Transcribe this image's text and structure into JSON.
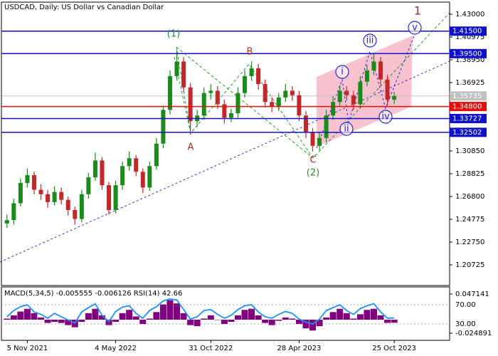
{
  "chart_data": [
    {
      "type": "candlestick",
      "title": "USDCAD, Daily:  US Dollar vs Canadian Dollar",
      "categories": [
        null,
        null,
        null,
        "5 Nov 2021",
        null,
        null,
        null,
        null,
        null,
        null,
        null,
        null,
        null,
        null,
        null,
        null,
        "4 May 2022",
        null,
        null,
        null,
        null,
        null,
        null,
        null,
        null,
        null,
        null,
        null,
        null,
        null,
        "31 Oct 2022",
        null,
        null,
        null,
        null,
        null,
        null,
        null,
        null,
        null,
        null,
        null,
        null,
        "28 Apr 2023",
        null,
        null,
        null,
        null,
        null,
        null,
        null,
        null,
        null,
        null,
        null,
        null,
        null,
        "25 Oct 2023"
      ],
      "ohlc": [
        [
          1.244,
          1.252,
          1.24,
          1.247
        ],
        [
          1.247,
          1.266,
          1.243,
          1.262
        ],
        [
          1.262,
          1.284,
          1.259,
          1.28
        ],
        [
          1.28,
          1.293,
          1.276,
          1.287
        ],
        [
          1.287,
          1.29,
          1.27,
          1.274
        ],
        [
          1.274,
          1.279,
          1.265,
          1.27
        ],
        [
          1.27,
          1.274,
          1.258,
          1.263
        ],
        [
          1.263,
          1.277,
          1.26,
          1.272
        ],
        [
          1.272,
          1.276,
          1.261,
          1.265
        ],
        [
          1.265,
          1.268,
          1.251,
          1.256
        ],
        [
          1.256,
          1.259,
          1.243,
          1.248
        ],
        [
          1.248,
          1.274,
          1.245,
          1.27
        ],
        [
          1.27,
          1.289,
          1.266,
          1.285
        ],
        [
          1.285,
          1.307,
          1.282,
          1.3
        ],
        [
          1.3,
          1.303,
          1.274,
          1.278
        ],
        [
          1.278,
          1.281,
          1.252,
          1.256
        ],
        [
          1.256,
          1.282,
          1.253,
          1.278
        ],
        [
          1.278,
          1.299,
          1.274,
          1.295
        ],
        [
          1.295,
          1.308,
          1.291,
          1.302
        ],
        [
          1.302,
          1.305,
          1.286,
          1.29
        ],
        [
          1.29,
          1.293,
          1.271,
          1.276
        ],
        [
          1.276,
          1.299,
          1.273,
          1.295
        ],
        [
          1.295,
          1.32,
          1.292,
          1.315
        ],
        [
          1.315,
          1.349,
          1.311,
          1.345
        ],
        [
          1.345,
          1.38,
          1.341,
          1.375
        ],
        [
          1.375,
          1.398,
          1.371,
          1.388
        ],
        [
          1.388,
          1.392,
          1.361,
          1.365
        ],
        [
          1.365,
          1.369,
          1.323,
          1.335
        ],
        [
          1.335,
          1.345,
          1.33,
          1.34
        ],
        [
          1.34,
          1.365,
          1.336,
          1.36
        ],
        [
          1.36,
          1.368,
          1.354,
          1.362
        ],
        [
          1.362,
          1.366,
          1.346,
          1.35
        ],
        [
          1.35,
          1.354,
          1.333,
          1.338
        ],
        [
          1.338,
          1.346,
          1.334,
          1.342
        ],
        [
          1.342,
          1.365,
          1.338,
          1.36
        ],
        [
          1.36,
          1.38,
          1.356,
          1.375
        ],
        [
          1.375,
          1.388,
          1.371,
          1.382
        ],
        [
          1.382,
          1.386,
          1.363,
          1.368
        ],
        [
          1.368,
          1.372,
          1.347,
          1.352
        ],
        [
          1.352,
          1.356,
          1.343,
          1.348
        ],
        [
          1.348,
          1.36,
          1.344,
          1.356
        ],
        [
          1.356,
          1.368,
          1.352,
          1.362
        ],
        [
          1.362,
          1.366,
          1.353,
          1.358
        ],
        [
          1.358,
          1.362,
          1.335,
          1.34
        ],
        [
          1.34,
          1.344,
          1.32,
          1.325
        ],
        [
          1.325,
          1.329,
          1.308,
          1.313
        ],
        [
          1.313,
          1.325,
          1.309,
          1.32
        ],
        [
          1.32,
          1.345,
          1.316,
          1.34
        ],
        [
          1.34,
          1.357,
          1.336,
          1.352
        ],
        [
          1.352,
          1.367,
          1.348,
          1.362
        ],
        [
          1.362,
          1.366,
          1.353,
          1.358
        ],
        [
          1.358,
          1.362,
          1.345,
          1.35
        ],
        [
          1.35,
          1.375,
          1.346,
          1.37
        ],
        [
          1.37,
          1.385,
          1.366,
          1.38
        ],
        [
          1.38,
          1.396,
          1.376,
          1.388
        ],
        [
          1.388,
          1.392,
          1.367,
          1.372
        ],
        [
          1.372,
          1.376,
          1.349,
          1.354
        ],
        [
          1.354,
          1.361,
          1.35,
          1.3573
        ]
      ],
      "up_color": "#1a8a1a",
      "down_color": "#c0282a",
      "ylim": [
        1.1895,
        1.4395
      ],
      "yticks": [
        {
          "value": 1.43,
          "label": "1.43000"
        },
        {
          "value": 1.40975,
          "label": "1.40975"
        },
        {
          "value": 1.3895,
          "label": "1.38950"
        },
        {
          "value": 1.36925,
          "label": "1.36925"
        },
        {
          "value": 1.3085,
          "label": "1.30850"
        },
        {
          "value": 1.28825,
          "label": "1.28825"
        },
        {
          "value": 1.268,
          "label": "1.26800"
        },
        {
          "value": 1.24775,
          "label": "1.24775"
        },
        {
          "value": 1.2275,
          "label": "1.22750"
        },
        {
          "value": 1.20725,
          "label": "1.20725"
        }
      ],
      "levels": [
        {
          "value": 1.415,
          "label": "1.41500",
          "color": "#1010c8"
        },
        {
          "value": 1.395,
          "label": "1.39500",
          "color": "#1010c8"
        },
        {
          "value": 1.348,
          "label": "1.34800",
          "color": "#e01010"
        },
        {
          "value": 1.33727,
          "label": "1.33727",
          "color": "#1010c8"
        },
        {
          "value": 1.32502,
          "label": "1.32502",
          "color": "#1010c8"
        }
      ],
      "current_price": {
        "value": 1.35735,
        "label": "1.35735",
        "color": "#c0c0c0"
      },
      "annotations": [
        {
          "text": "(1)",
          "color": "#2e8b2e"
        },
        {
          "text": "A",
          "color": "#a0302a"
        },
        {
          "text": "B",
          "color": "#a0302a"
        },
        {
          "text": "C",
          "color": "#a0302a"
        },
        {
          "text": "(2)",
          "color": "#2e8b2e"
        },
        {
          "text": "i",
          "color": "#2323d0",
          "style": "circle"
        },
        {
          "text": "ii",
          "color": "#2323d0",
          "style": "circle"
        },
        {
          "text": "iii",
          "color": "#2323d0",
          "style": "circle"
        },
        {
          "text": "iv",
          "color": "#2323d0",
          "style": "circle"
        },
        {
          "text": "v",
          "color": "#2323d0",
          "style": "circle"
        },
        {
          "text": "1",
          "color": "#a0302a"
        }
      ]
    },
    {
      "type": "indicator",
      "title": "MACD(5,34,5) -0.005555 -0.006126 RSI(14) 42.66",
      "series": [
        {
          "color": "#800080",
          "style": "bar",
          "values": [
            0.002,
            0.008,
            0.015,
            0.02,
            0.012,
            0.004,
            -0.006,
            -0.004,
            -0.006,
            -0.01,
            -0.014,
            -0.004,
            0.012,
            0.02,
            0.008,
            -0.01,
            -0.004,
            0.012,
            0.018,
            0.006,
            -0.008,
            0.002,
            0.014,
            0.028,
            0.036,
            0.03,
            0.012,
            -0.01,
            -0.012,
            0.002,
            0.008,
            0.0,
            -0.008,
            -0.004,
            0.008,
            0.018,
            0.02,
            0.008,
            -0.006,
            -0.01,
            -0.002,
            0.004,
            0.002,
            -0.008,
            -0.016,
            -0.02,
            -0.012,
            0.004,
            0.014,
            0.02,
            0.012,
            0.002,
            0.01,
            0.018,
            0.02,
            0.008,
            -0.006,
            -0.0056
          ]
        },
        {
          "color": "#1e90ff",
          "style": "line",
          "axis": "y2",
          "values": [
            45,
            58,
            66,
            70,
            55,
            50,
            42,
            52,
            45,
            38,
            32,
            55,
            64,
            72,
            48,
            35,
            56,
            65,
            68,
            52,
            42,
            58,
            66,
            78,
            82,
            80,
            60,
            40,
            45,
            58,
            60,
            50,
            42,
            48,
            60,
            68,
            70,
            55,
            45,
            42,
            50,
            56,
            52,
            40,
            34,
            30,
            40,
            58,
            64,
            70,
            58,
            50,
            62,
            68,
            72,
            55,
            42,
            42.66
          ]
        }
      ],
      "ylim": [
        -0.038,
        0.0576
      ],
      "yticks": [
        0.047141,
        -0.024891
      ],
      "y2lim": [
        -4.07,
        104.1
      ],
      "y2ticks": [
        {
          "value": 70,
          "label": "70.00"
        },
        {
          "value": 30,
          "label": "30.00"
        }
      ]
    }
  ]
}
